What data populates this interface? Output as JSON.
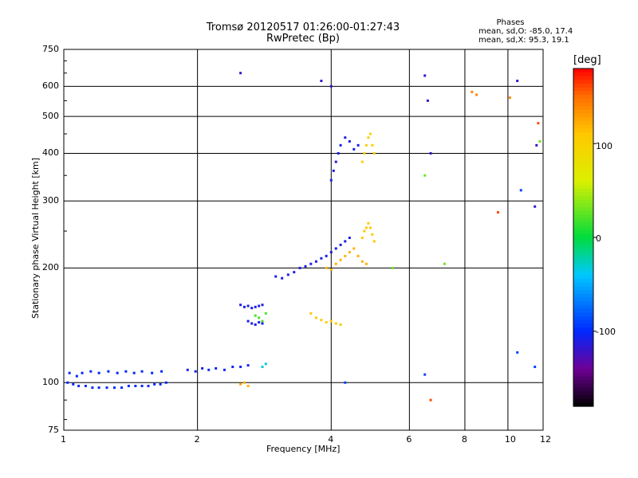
{
  "chart_data": {
    "type": "scatter",
    "title": "Tromsø 20120517 01:26:00-01:27:43",
    "subtitle": "RwPretec (Bp)",
    "xlabel": "Frequency [MHz]",
    "ylabel": "Stationary phase Virtual Height [km]",
    "x_scale": "log",
    "y_scale": "log",
    "xlim": [
      1,
      12
    ],
    "ylim": [
      75,
      750
    ],
    "x_ticks": [
      "1",
      "2",
      "4",
      "6",
      "8",
      "10",
      "12"
    ],
    "y_ticks": [
      "75",
      "100",
      "200",
      "300",
      "400",
      "500",
      "600",
      "750"
    ],
    "grid": true,
    "phases_title": "Phases",
    "phase_stats": [
      {
        "label": "mean, sd,O:",
        "mean": "-85.0",
        "sd": "17.4"
      },
      {
        "label": "mean, sd,X:",
        "mean": "95.3",
        "sd": "19.1"
      }
    ],
    "colorbar": {
      "label": "[deg]",
      "range": [
        -180,
        180
      ],
      "tick_labels": [
        "100",
        "0",
        "-100"
      ],
      "tick_values": [
        100,
        0,
        -100
      ]
    },
    "series": [
      {
        "phase": -100,
        "x": [
          1.02,
          1.05,
          1.08,
          1.12,
          1.16,
          1.2,
          1.25,
          1.3,
          1.35,
          1.4,
          1.45,
          1.5,
          1.55,
          1.6,
          1.65,
          1.7
        ],
        "y": [
          100,
          99,
          98,
          98,
          97,
          97,
          97,
          97,
          97,
          98,
          98,
          98,
          98,
          99,
          99,
          100
        ]
      },
      {
        "phase": -100,
        "x": [
          1.03,
          1.07,
          1.1,
          1.15,
          1.2,
          1.26,
          1.32,
          1.38,
          1.44,
          1.5,
          1.58,
          1.66
        ],
        "y": [
          106,
          104,
          106,
          107,
          106,
          107,
          106,
          107,
          106,
          107,
          106,
          107
        ]
      },
      {
        "phase": -105,
        "x": [
          1.9,
          1.98,
          2.05,
          2.12,
          2.2,
          2.3,
          2.4,
          2.5,
          2.6
        ],
        "y": [
          108,
          107,
          109,
          108,
          109,
          108,
          110,
          110,
          111
        ]
      },
      {
        "phase": -110,
        "x": [
          2.5,
          2.55,
          2.6,
          2.65,
          2.7,
          2.75,
          2.8
        ],
        "y": [
          160,
          158,
          159,
          157,
          158,
          159,
          160
        ]
      },
      {
        "phase": -110,
        "x": [
          2.6,
          2.65,
          2.7,
          2.75,
          2.8
        ],
        "y": [
          145,
          143,
          142,
          144,
          143
        ]
      },
      {
        "phase": -110,
        "x": [
          3.0,
          3.1,
          3.2,
          3.3,
          3.4,
          3.5,
          3.6,
          3.7,
          3.8,
          3.9,
          4.0,
          4.1,
          4.2,
          4.3,
          4.4
        ],
        "y": [
          190,
          188,
          192,
          195,
          200,
          202,
          205,
          208,
          212,
          215,
          220,
          225,
          230,
          235,
          240
        ]
      },
      {
        "phase": -110,
        "x": [
          4.0,
          4.05,
          4.1,
          4.15,
          4.2,
          4.3,
          4.4,
          4.5,
          4.6
        ],
        "y": [
          340,
          360,
          380,
          400,
          420,
          440,
          430,
          410,
          420
        ]
      },
      {
        "phase": 20,
        "x": [
          2.7,
          2.75,
          2.8,
          2.85
        ],
        "y": [
          150,
          148,
          145,
          152
        ]
      },
      {
        "phase": -30,
        "x": [
          2.8,
          2.85
        ],
        "y": [
          110,
          112
        ]
      },
      {
        "phase": 110,
        "x": [
          3.6,
          3.7,
          3.8,
          3.9,
          4.0,
          4.1,
          4.2
        ],
        "y": [
          152,
          148,
          146,
          144,
          145,
          143,
          142
        ]
      },
      {
        "phase": 120,
        "x": [
          3.9,
          4.0,
          4.1,
          4.2,
          4.3,
          4.4,
          4.5,
          4.6,
          4.7,
          4.8
        ],
        "y": [
          200,
          198,
          205,
          210,
          215,
          220,
          225,
          215,
          208,
          205
        ]
      },
      {
        "phase": 110,
        "x": [
          4.7,
          4.75,
          4.8,
          4.85,
          4.9,
          4.95,
          5.0
        ],
        "y": [
          240,
          250,
          255,
          262,
          255,
          245,
          235
        ]
      },
      {
        "phase": 100,
        "x": [
          4.7,
          4.75,
          4.8,
          4.85,
          4.9,
          4.95,
          5.0
        ],
        "y": [
          380,
          400,
          420,
          440,
          450,
          420,
          400
        ]
      },
      {
        "phase": 120,
        "x": [
          2.5,
          2.55,
          2.6
        ],
        "y": [
          99,
          100,
          98
        ]
      },
      {
        "phase": -120,
        "x": [
          2.5,
          3.8,
          4.0,
          6.5,
          6.6,
          6.7,
          10.5,
          11.5,
          11.6
        ],
        "y": [
          650,
          620,
          600,
          640,
          550,
          400,
          620,
          290,
          420
        ]
      },
      {
        "phase": 140,
        "x": [
          8.3,
          8.5,
          10.1
        ],
        "y": [
          580,
          570,
          560
        ]
      },
      {
        "phase": 30,
        "x": [
          6.5,
          7.2,
          5.5,
          11.8
        ],
        "y": [
          350,
          205,
          200,
          430
        ]
      },
      {
        "phase": 160,
        "x": [
          6.7,
          9.5,
          11.7
        ],
        "y": [
          90,
          280,
          480
        ]
      },
      {
        "phase": -90,
        "x": [
          10.5,
          10.7,
          11.5,
          6.5,
          4.3
        ],
        "y": [
          120,
          320,
          110,
          105,
          100
        ]
      }
    ]
  }
}
